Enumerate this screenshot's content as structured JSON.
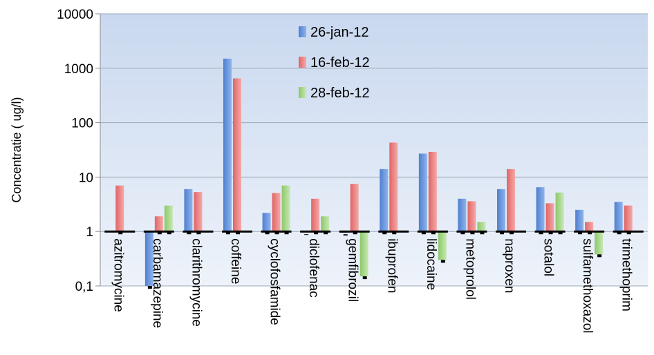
{
  "chart_data": {
    "type": "bar",
    "ylabel": "Concentratie ( ug/l)",
    "yscale": "log",
    "ylim": [
      0.1,
      10000
    ],
    "y_baseline": 1,
    "yticks": [
      {
        "value": 0.1,
        "label": "0,1"
      },
      {
        "value": 1,
        "label": "1"
      },
      {
        "value": 10,
        "label": "10"
      },
      {
        "value": 100,
        "label": "100"
      },
      {
        "value": 1000,
        "label": "1000"
      },
      {
        "value": 10000,
        "label": "10000"
      }
    ],
    "grid": true,
    "legend_position": "top-center",
    "categories": [
      "azitromycine",
      "carbamazepine",
      "clarithromycine",
      "coffeine",
      "cyclofosfamide",
      "diclofenac",
      "gemfibrozil",
      "ibuprofen",
      "lidocaine",
      "metoprolol",
      "naproxen",
      "sotalol",
      "sulfamethoxazol",
      "trimethoprim"
    ],
    "series": [
      {
        "name": "26-jan-12",
        "color": "#5b8fd9",
        "values": [
          null,
          0.1,
          6,
          1500,
          2.2,
          1,
          0.95,
          14,
          27,
          4,
          6,
          6.5,
          2.5,
          3.5
        ]
      },
      {
        "name": "16-feb-12",
        "color": "#e87f7f",
        "values": [
          7,
          1.9,
          5.3,
          650,
          5.1,
          4,
          7.5,
          43,
          29,
          3.6,
          14,
          3.3,
          1.5,
          3
        ]
      },
      {
        "name": "28-feb-12",
        "color": "#9fd27f",
        "values": [
          null,
          3,
          null,
          null,
          7,
          1.9,
          0.15,
          null,
          0.3,
          1.5,
          null,
          5.2,
          0.38,
          null
        ]
      }
    ]
  }
}
